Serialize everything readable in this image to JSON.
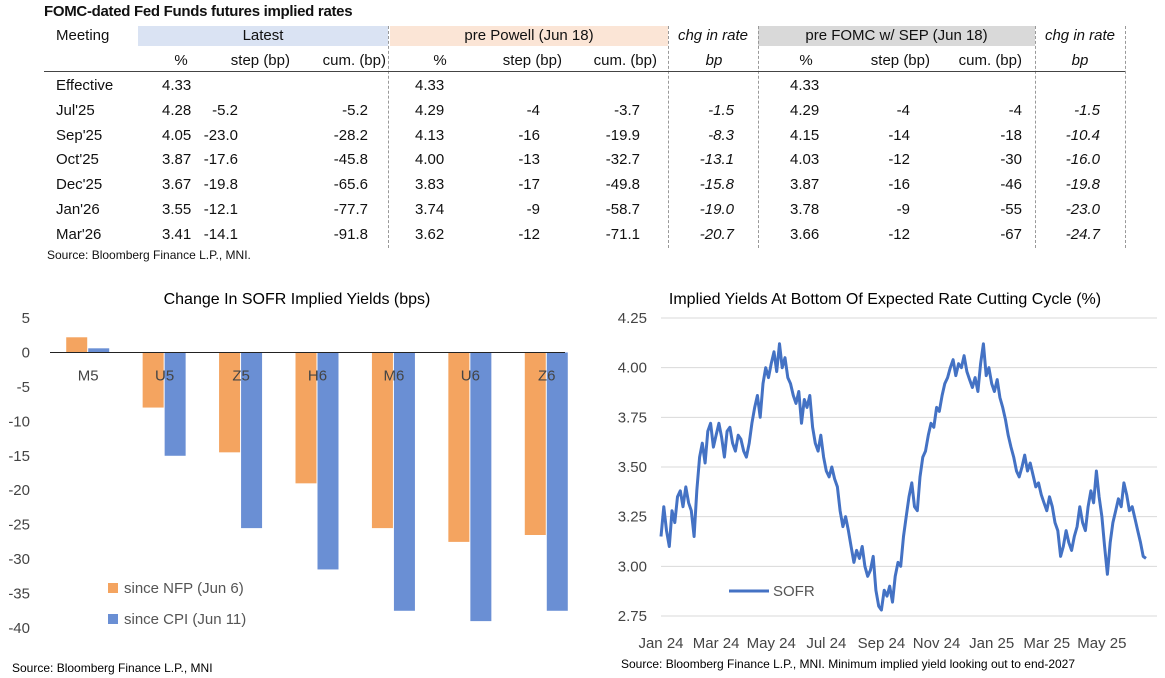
{
  "table": {
    "title": "FOMC-dated Fed Funds futures implied rates",
    "meeting_label": "Meeting",
    "groups": [
      {
        "name": "Latest",
        "color": "#dae3f3"
      },
      {
        "name": "pre Powell (Jun 18)",
        "color": "#fbe5d6"
      },
      {
        "name": "chg in rate",
        "color": "#ffffff"
      },
      {
        "name": "pre FOMC w/ SEP (Jun 18)",
        "color": "#d9d9d9"
      },
      {
        "name": "chg in rate",
        "color": "#ffffff"
      }
    ],
    "subheaders": [
      "%",
      "step (bp)",
      "cum. (bp)",
      "%",
      "step (bp)",
      "cum. (bp)",
      "bp",
      "%",
      "step (bp)",
      "cum. (bp)",
      "bp"
    ],
    "rows": [
      [
        "Effective",
        "4.33",
        "",
        "",
        "4.33",
        "",
        "",
        "",
        "4.33",
        "",
        "",
        ""
      ],
      [
        "Jul'25",
        "4.28",
        "-5.2",
        "-5.2",
        "4.29",
        "-4",
        "-3.7",
        "-1.5",
        "4.29",
        "-4",
        "-4",
        "-1.5"
      ],
      [
        "Sep'25",
        "4.05",
        "-23.0",
        "-28.2",
        "4.13",
        "-16",
        "-19.9",
        "-8.3",
        "4.15",
        "-14",
        "-18",
        "-10.4"
      ],
      [
        "Oct'25",
        "3.87",
        "-17.6",
        "-45.8",
        "4.00",
        "-13",
        "-32.7",
        "-13.1",
        "4.03",
        "-12",
        "-30",
        "-16.0"
      ],
      [
        "Dec'25",
        "3.67",
        "-19.8",
        "-65.6",
        "3.83",
        "-17",
        "-49.8",
        "-15.8",
        "3.87",
        "-16",
        "-46",
        "-19.8"
      ],
      [
        "Jan'26",
        "3.55",
        "-12.1",
        "-77.7",
        "3.74",
        "-9",
        "-58.7",
        "-19.0",
        "3.78",
        "-9",
        "-55",
        "-23.0"
      ],
      [
        "Mar'26",
        "3.41",
        "-14.1",
        "-91.8",
        "3.62",
        "-12",
        "-71.1",
        "-20.7",
        "3.66",
        "-12",
        "-67",
        "-24.7"
      ]
    ],
    "source": "Source: Bloomberg Finance L.P., MNI."
  },
  "chart_data": [
    {
      "type": "bar",
      "title": "Change In SOFR Implied Yields (bps)",
      "categories": [
        "M5",
        "U5",
        "Z5",
        "H6",
        "M6",
        "U6",
        "Z6"
      ],
      "series": [
        {
          "name": "since NFP (Jun 6)",
          "color": "#f4a460",
          "values": [
            2.2,
            -8.0,
            -14.5,
            -19.0,
            -25.5,
            -27.5,
            -26.5
          ]
        },
        {
          "name": "since CPI (Jun 11)",
          "color": "#6a8fd4",
          "values": [
            0.6,
            -15.0,
            -25.5,
            -31.5,
            -37.5,
            -39.0,
            -37.5
          ]
        }
      ],
      "ylim": [
        -40,
        5
      ],
      "yticks": [
        5,
        0,
        -5,
        -10,
        -15,
        -20,
        -25,
        -30,
        -35,
        -40
      ],
      "legend": "bottom-left",
      "source": "Source: Bloomberg Finance L.P., MNI"
    },
    {
      "type": "line",
      "title": "Implied Yields At Bottom Of Expected Rate Cutting Cycle (%)",
      "series_name": "SOFR",
      "series_color": "#4472c4",
      "x_range_months": [
        0,
        18
      ],
      "ylim": [
        2.75,
        4.25
      ],
      "yticks": [
        "4.25",
        "4.00",
        "3.75",
        "3.50",
        "3.25",
        "3.00",
        "2.75"
      ],
      "xtick_labels": [
        "Jan 24",
        "Mar 24",
        "May 24",
        "Jul 24",
        "Sep 24",
        "Nov 24",
        "Jan 25",
        "Mar 25",
        "May 25"
      ],
      "points": [
        [
          0.0,
          3.15
        ],
        [
          0.1,
          3.3
        ],
        [
          0.2,
          3.18
        ],
        [
          0.3,
          3.1
        ],
        [
          0.4,
          3.28
        ],
        [
          0.5,
          3.22
        ],
        [
          0.6,
          3.35
        ],
        [
          0.7,
          3.38
        ],
        [
          0.8,
          3.3
        ],
        [
          0.9,
          3.4
        ],
        [
          1.0,
          3.32
        ],
        [
          1.1,
          3.28
        ],
        [
          1.2,
          3.15
        ],
        [
          1.3,
          3.38
        ],
        [
          1.4,
          3.55
        ],
        [
          1.5,
          3.62
        ],
        [
          1.6,
          3.52
        ],
        [
          1.7,
          3.68
        ],
        [
          1.8,
          3.72
        ],
        [
          1.9,
          3.6
        ],
        [
          2.0,
          3.66
        ],
        [
          2.1,
          3.72
        ],
        [
          2.2,
          3.65
        ],
        [
          2.3,
          3.55
        ],
        [
          2.4,
          3.68
        ],
        [
          2.5,
          3.7
        ],
        [
          2.6,
          3.62
        ],
        [
          2.7,
          3.58
        ],
        [
          2.8,
          3.66
        ],
        [
          2.9,
          3.64
        ],
        [
          3.0,
          3.58
        ],
        [
          3.1,
          3.55
        ],
        [
          3.2,
          3.62
        ],
        [
          3.3,
          3.72
        ],
        [
          3.4,
          3.8
        ],
        [
          3.5,
          3.86
        ],
        [
          3.6,
          3.75
        ],
        [
          3.7,
          3.92
        ],
        [
          3.8,
          4.0
        ],
        [
          3.9,
          3.95
        ],
        [
          4.0,
          4.02
        ],
        [
          4.1,
          4.08
        ],
        [
          4.2,
          3.98
        ],
        [
          4.3,
          4.12
        ],
        [
          4.4,
          4.0
        ],
        [
          4.5,
          4.05
        ],
        [
          4.6,
          3.95
        ],
        [
          4.7,
          3.92
        ],
        [
          4.8,
          3.86
        ],
        [
          4.9,
          3.82
        ],
        [
          5.0,
          3.88
        ],
        [
          5.1,
          3.72
        ],
        [
          5.2,
          3.84
        ],
        [
          5.3,
          3.8
        ],
        [
          5.4,
          3.86
        ],
        [
          5.5,
          3.7
        ],
        [
          5.6,
          3.62
        ],
        [
          5.7,
          3.58
        ],
        [
          5.8,
          3.66
        ],
        [
          5.9,
          3.55
        ],
        [
          6.0,
          3.48
        ],
        [
          6.1,
          3.45
        ],
        [
          6.2,
          3.5
        ],
        [
          6.3,
          3.44
        ],
        [
          6.4,
          3.4
        ],
        [
          6.5,
          3.28
        ],
        [
          6.6,
          3.2
        ],
        [
          6.7,
          3.25
        ],
        [
          6.8,
          3.18
        ],
        [
          6.9,
          3.1
        ],
        [
          7.0,
          3.02
        ],
        [
          7.1,
          3.08
        ],
        [
          7.2,
          3.04
        ],
        [
          7.3,
          3.1
        ],
        [
          7.4,
          3.0
        ],
        [
          7.5,
          2.95
        ],
        [
          7.6,
          2.98
        ],
        [
          7.7,
          3.05
        ],
        [
          7.8,
          2.88
        ],
        [
          7.9,
          2.8
        ],
        [
          8.0,
          2.78
        ],
        [
          8.1,
          2.88
        ],
        [
          8.2,
          2.85
        ],
        [
          8.3,
          2.9
        ],
        [
          8.4,
          2.82
        ],
        [
          8.5,
          2.95
        ],
        [
          8.6,
          3.02
        ],
        [
          8.7,
          3.0
        ],
        [
          8.8,
          3.15
        ],
        [
          8.9,
          3.25
        ],
        [
          9.0,
          3.35
        ],
        [
          9.1,
          3.42
        ],
        [
          9.2,
          3.3
        ],
        [
          9.3,
          3.28
        ],
        [
          9.4,
          3.45
        ],
        [
          9.5,
          3.55
        ],
        [
          9.6,
          3.58
        ],
        [
          9.7,
          3.66
        ],
        [
          9.8,
          3.72
        ],
        [
          9.9,
          3.7
        ],
        [
          10.0,
          3.8
        ],
        [
          10.1,
          3.78
        ],
        [
          10.2,
          3.86
        ],
        [
          10.3,
          3.92
        ],
        [
          10.4,
          3.95
        ],
        [
          10.5,
          4.0
        ],
        [
          10.6,
          4.04
        ],
        [
          10.7,
          3.96
        ],
        [
          10.8,
          4.02
        ],
        [
          10.9,
          4.0
        ],
        [
          11.0,
          4.06
        ],
        [
          11.1,
          3.98
        ],
        [
          11.2,
          3.94
        ],
        [
          11.3,
          3.9
        ],
        [
          11.4,
          3.95
        ],
        [
          11.5,
          3.88
        ],
        [
          11.6,
          4.02
        ],
        [
          11.7,
          4.12
        ],
        [
          11.8,
          3.96
        ],
        [
          11.9,
          4.0
        ],
        [
          12.0,
          3.92
        ],
        [
          12.1,
          3.88
        ],
        [
          12.2,
          3.94
        ],
        [
          12.3,
          3.85
        ],
        [
          12.4,
          3.8
        ],
        [
          12.5,
          3.74
        ],
        [
          12.6,
          3.66
        ],
        [
          12.7,
          3.6
        ],
        [
          12.8,
          3.55
        ],
        [
          12.9,
          3.48
        ],
        [
          13.0,
          3.45
        ],
        [
          13.1,
          3.5
        ],
        [
          13.2,
          3.56
        ],
        [
          13.3,
          3.48
        ],
        [
          13.4,
          3.52
        ],
        [
          13.5,
          3.46
        ],
        [
          13.6,
          3.4
        ],
        [
          13.7,
          3.42
        ],
        [
          13.8,
          3.36
        ],
        [
          13.9,
          3.32
        ],
        [
          14.0,
          3.28
        ],
        [
          14.1,
          3.35
        ],
        [
          14.2,
          3.3
        ],
        [
          14.3,
          3.22
        ],
        [
          14.4,
          3.18
        ],
        [
          14.5,
          3.05
        ],
        [
          14.6,
          3.1
        ],
        [
          14.7,
          3.18
        ],
        [
          14.8,
          3.12
        ],
        [
          14.9,
          3.08
        ],
        [
          15.0,
          3.15
        ],
        [
          15.1,
          3.2
        ],
        [
          15.2,
          3.3
        ],
        [
          15.3,
          3.22
        ],
        [
          15.4,
          3.18
        ],
        [
          15.5,
          3.3
        ],
        [
          15.6,
          3.38
        ],
        [
          15.7,
          3.32
        ],
        [
          15.8,
          3.48
        ],
        [
          15.9,
          3.35
        ],
        [
          16.0,
          3.25
        ],
        [
          16.1,
          3.1
        ],
        [
          16.2,
          2.96
        ],
        [
          16.3,
          3.12
        ],
        [
          16.4,
          3.22
        ],
        [
          16.5,
          3.28
        ],
        [
          16.6,
          3.34
        ],
        [
          16.7,
          3.3
        ],
        [
          16.8,
          3.42
        ],
        [
          16.9,
          3.36
        ],
        [
          17.0,
          3.28
        ],
        [
          17.1,
          3.3
        ],
        [
          17.2,
          3.24
        ],
        [
          17.3,
          3.18
        ],
        [
          17.4,
          3.12
        ],
        [
          17.5,
          3.05
        ],
        [
          17.6,
          3.04
        ]
      ],
      "legend": "bottom-left",
      "source": "Source: Bloomberg Finance L.P., MNI. Minimum implied yield looking out to end-2027"
    }
  ]
}
